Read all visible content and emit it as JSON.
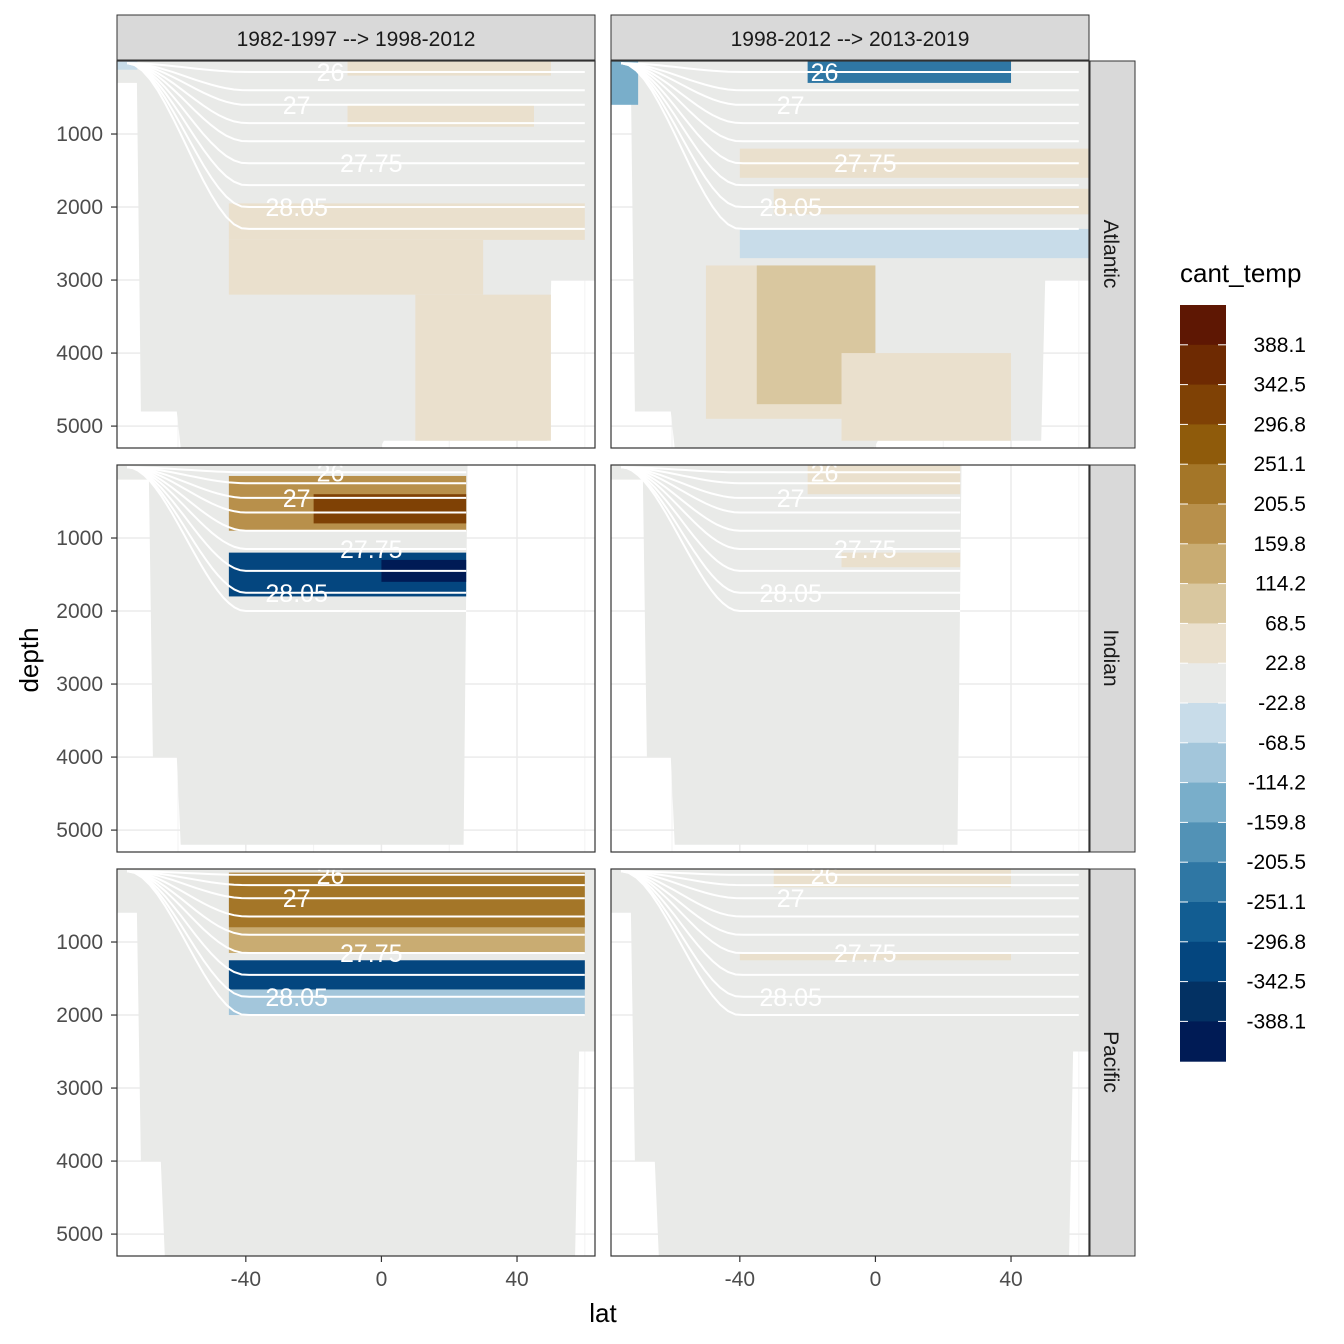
{
  "chart_data": {
    "type": "heatmap",
    "title": "",
    "xlabel": "lat",
    "ylabel": "depth",
    "columns": [
      "1982-1997 --> 1998-2012",
      "1998-2012 --> 2013-2019"
    ],
    "rows": [
      "Atlantic",
      "Indian",
      "Pacific"
    ],
    "xlim": [
      -78,
      63
    ],
    "ylim": [
      5300,
      0
    ],
    "y_reversed": true,
    "x_ticks": [
      -40,
      0,
      40
    ],
    "x_tick_labels": [
      "-40",
      "0",
      "40"
    ],
    "y_ticks": [
      1000,
      2000,
      3000,
      4000,
      5000
    ],
    "y_tick_labels": [
      "1000",
      "2000",
      "3000",
      "4000",
      "5000"
    ],
    "grid": true,
    "legend": {
      "title": "cant_temp",
      "placement": "right",
      "labels": [
        "388.1",
        "342.5",
        "296.8",
        "251.1",
        "205.5",
        "159.8",
        "114.2",
        "68.5",
        "22.8",
        "-22.8",
        "-68.5",
        "-114.2",
        "-159.8",
        "-205.5",
        "-251.1",
        "-296.8",
        "-342.5",
        "-388.1"
      ],
      "colors": [
        "#5e1703",
        "#6e2a02",
        "#7f4105",
        "#8f5b0b",
        "#a47628",
        "#b8904b",
        "#c9ac72",
        "#d9c79f",
        "#eae0cd",
        "#e9eae8",
        "#c8dce9",
        "#a3c6db",
        "#79aeca",
        "#5292b6",
        "#2f77a4",
        "#125d92",
        "#04467f",
        "#033163",
        "#001b55"
      ]
    },
    "isopycnal_labels": [
      "26",
      "27",
      "27.75",
      "28.05"
    ],
    "isopycnal_depths": {
      "Atlantic": [
        150,
        400,
        600,
        850,
        1100,
        1400,
        1700,
        2000,
        2300
      ],
      "Indian": [
        100,
        250,
        450,
        650,
        900,
        1150,
        1450,
        1750,
        2000
      ],
      "Pacific": [
        80,
        220,
        400,
        650,
        900,
        1150,
        1450,
        1750,
        2000
      ]
    },
    "panels": [
      {
        "column": "1982-1997 --> 1998-2012",
        "row": "Atlantic",
        "anomalies": [
          {
            "value": 40,
            "lat": [
              -45,
              60
            ],
            "depth": [
              1950,
              2450
            ]
          },
          {
            "value": 40,
            "lat": [
              -45,
              30
            ],
            "depth": [
              2450,
              3200
            ]
          },
          {
            "value": 40,
            "lat": [
              10,
              50
            ],
            "depth": [
              3200,
              5200
            ]
          },
          {
            "value": 40,
            "lat": [
              -10,
              45
            ],
            "depth": [
              600,
              900
            ]
          },
          {
            "value": -40,
            "lat": [
              -78,
              -72
            ],
            "depth": [
              0,
              120
            ]
          },
          {
            "value": 40,
            "lat": [
              -10,
              50
            ],
            "depth": [
              0,
              200
            ]
          }
        ]
      },
      {
        "column": "1998-2012 --> 2013-2019",
        "row": "Atlantic",
        "anomalies": [
          {
            "value": -230,
            "lat": [
              -20,
              40
            ],
            "depth": [
              0,
              300
            ]
          },
          {
            "value": -120,
            "lat": [
              -78,
              -70
            ],
            "depth": [
              0,
              600
            ]
          },
          {
            "value": 40,
            "lat": [
              -40,
              63
            ],
            "depth": [
              1200,
              1600
            ]
          },
          {
            "value": 40,
            "lat": [
              -30,
              63
            ],
            "depth": [
              1750,
              2100
            ]
          },
          {
            "value": -40,
            "lat": [
              -40,
              63
            ],
            "depth": [
              2300,
              2700
            ]
          },
          {
            "value": 40,
            "lat": [
              -50,
              -10
            ],
            "depth": [
              2800,
              4900
            ]
          },
          {
            "value": 110,
            "lat": [
              -35,
              0
            ],
            "depth": [
              2800,
              4700
            ]
          },
          {
            "value": 40,
            "lat": [
              -10,
              40
            ],
            "depth": [
              4000,
              5200
            ]
          }
        ]
      },
      {
        "column": "1982-1997 --> 1998-2012",
        "row": "Indian",
        "anomalies": [
          {
            "value": 200,
            "lat": [
              -45,
              25
            ],
            "depth": [
              150,
              900
            ]
          },
          {
            "value": 300,
            "lat": [
              -20,
              25
            ],
            "depth": [
              400,
              800
            ]
          },
          {
            "value": -300,
            "lat": [
              -45,
              25
            ],
            "depth": [
              1200,
              1800
            ]
          },
          {
            "value": -400,
            "lat": [
              0,
              25
            ],
            "depth": [
              1300,
              1600
            ]
          }
        ]
      },
      {
        "column": "1998-2012 --> 2013-2019",
        "row": "Indian",
        "anomalies": [
          {
            "value": 40,
            "lat": [
              -20,
              25
            ],
            "depth": [
              0,
              400
            ]
          },
          {
            "value": 40,
            "lat": [
              -10,
              25
            ],
            "depth": [
              1200,
              1400
            ]
          }
        ]
      },
      {
        "column": "1982-1997 --> 1998-2012",
        "row": "Pacific",
        "anomalies": [
          {
            "value": 250,
            "lat": [
              -45,
              60
            ],
            "depth": [
              50,
              800
            ]
          },
          {
            "value": 120,
            "lat": [
              -45,
              60
            ],
            "depth": [
              800,
              1150
            ]
          },
          {
            "value": -300,
            "lat": [
              -45,
              60
            ],
            "depth": [
              1250,
              1650
            ]
          },
          {
            "value": -80,
            "lat": [
              -45,
              60
            ],
            "depth": [
              1650,
              2000
            ]
          }
        ]
      },
      {
        "column": "1998-2012 --> 2013-2019",
        "row": "Pacific",
        "anomalies": [
          {
            "value": 40,
            "lat": [
              -30,
              40
            ],
            "depth": [
              0,
              250
            ]
          },
          {
            "value": 40,
            "lat": [
              -40,
              40
            ],
            "depth": [
              1150,
              1250
            ]
          }
        ]
      }
    ]
  }
}
